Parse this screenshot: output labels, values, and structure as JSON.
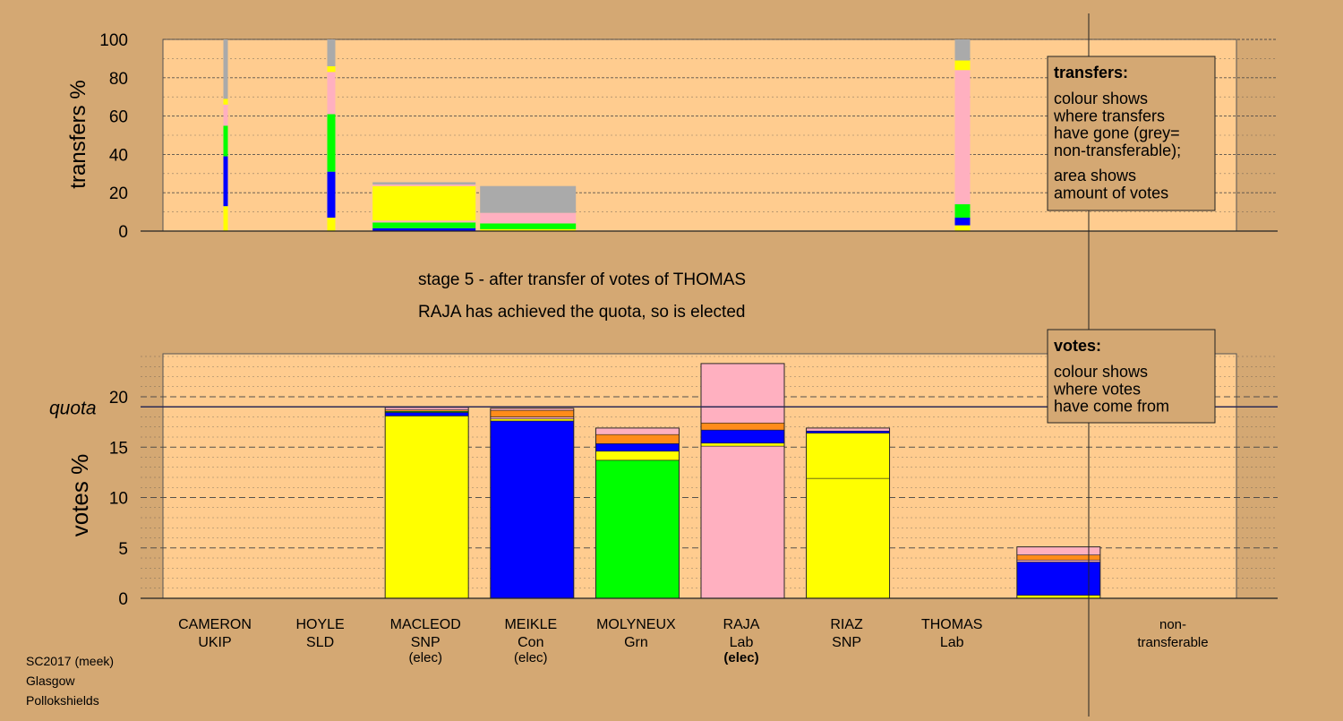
{
  "colors": {
    "background": "#d4a873",
    "panel": "#ffcc8f",
    "snp": "#ffff00",
    "con": "#0000ff",
    "grn": "#00ff00",
    "lab": "#ffb0c0",
    "orange": "#ff8c1a",
    "nontransferable": "#aaaaaa",
    "dark": "#2a2a55"
  },
  "chart_data": [
    {
      "type": "bar",
      "name": "transfers",
      "ylabel": "transfers %",
      "ylim": [
        0,
        100
      ],
      "yticks": [
        0,
        20,
        40,
        60,
        80,
        100
      ],
      "grid": true,
      "legend_placement": "right",
      "legend": {
        "title": "transfers:",
        "lines1": [
          "colour shows",
          "where transfers",
          "have gone (grey=",
          "non-transferable);"
        ],
        "lines2": [
          "area shows",
          "amount of votes"
        ]
      },
      "columns": [
        {
          "candidate": "CAMERON",
          "width": 0.05,
          "segments": [
            {
              "color": "snp",
              "from": 0,
              "to": 13
            },
            {
              "color": "con",
              "from": 13,
              "to": 39
            },
            {
              "color": "grn",
              "from": 39,
              "to": 55
            },
            {
              "color": "lab",
              "from": 55,
              "to": 66
            },
            {
              "color": "snp",
              "from": 66,
              "to": 69
            },
            {
              "color": "nontransferable",
              "from": 69,
              "to": 100
            }
          ]
        },
        {
          "candidate": "HOYLE",
          "width": 0.15,
          "segments": [
            {
              "color": "snp",
              "from": 0,
              "to": 7
            },
            {
              "color": "con",
              "from": 7,
              "to": 31
            },
            {
              "color": "grn",
              "from": 31,
              "to": 61
            },
            {
              "color": "lab",
              "from": 61,
              "to": 83
            },
            {
              "color": "snp",
              "from": 83,
              "to": 86
            },
            {
              "color": "nontransferable",
              "from": 86,
              "to": 100
            }
          ]
        },
        {
          "candidate": "MACLEOD",
          "width": 1.0,
          "segments": [
            {
              "color": "con",
              "from": 0,
              "to": 1.5
            },
            {
              "color": "grn",
              "from": 1.5,
              "to": 4.5
            },
            {
              "color": "lab",
              "from": 4.5,
              "to": 5.5
            },
            {
              "color": "snp",
              "from": 5.5,
              "to": 23.5
            },
            {
              "color": "lab",
              "from": 23.5,
              "to": 24.3
            },
            {
              "color": "nontransferable",
              "from": 24.3,
              "to": 25.5
            }
          ]
        },
        {
          "candidate": "MEIKLE",
          "width": 1.0,
          "segments": [
            {
              "color": "snp",
              "from": 0,
              "to": 1
            },
            {
              "color": "grn",
              "from": 1,
              "to": 4
            },
            {
              "color": "lab",
              "from": 4,
              "to": 9.5
            },
            {
              "color": "nontransferable",
              "from": 9.5,
              "to": 23.5
            }
          ]
        },
        {
          "candidate": "THOMAS",
          "width": 0.35,
          "segments": [
            {
              "color": "snp",
              "from": 0,
              "to": 3
            },
            {
              "color": "con",
              "from": 3,
              "to": 7
            },
            {
              "color": "grn",
              "from": 7,
              "to": 14
            },
            {
              "color": "lab",
              "from": 14,
              "to": 84
            },
            {
              "color": "snp",
              "from": 84,
              "to": 89
            },
            {
              "color": "nontransferable",
              "from": 89,
              "to": 100
            }
          ]
        }
      ]
    },
    {
      "type": "bar",
      "name": "votes",
      "ylabel": "votes %",
      "ylim": [
        0,
        24.5
      ],
      "yticks": [
        0,
        5,
        10,
        15,
        20
      ],
      "quota": 19,
      "quota_label": "quota",
      "grid": true,
      "legend_placement": "right",
      "legend": {
        "title": "votes:",
        "lines1": [
          "colour shows",
          "where votes",
          "have come from"
        ]
      },
      "categories": [
        {
          "name": "CAMERON",
          "party": "UKIP",
          "note": "",
          "bold_note": false
        },
        {
          "name": "HOYLE",
          "party": "SLD",
          "note": "",
          "bold_note": false
        },
        {
          "name": "MACLEOD",
          "party": "SNP",
          "note": "(elec)",
          "bold_note": false
        },
        {
          "name": "MEIKLE",
          "party": "Con",
          "note": "(elec)",
          "bold_note": false
        },
        {
          "name": "MOLYNEUX",
          "party": "Grn",
          "note": "",
          "bold_note": false
        },
        {
          "name": "RAJA",
          "party": "Lab",
          "note": "(elec)",
          "bold_note": true
        },
        {
          "name": "RIAZ",
          "party": "SNP",
          "note": "",
          "bold_note": false
        },
        {
          "name": "THOMAS",
          "party": "Lab",
          "note": "",
          "bold_note": false
        },
        {
          "name": "non-",
          "party": "transferable",
          "note": "",
          "bold_note": false
        }
      ],
      "stacks": [
        [],
        [],
        [
          {
            "color": "snp",
            "value": 18.1
          },
          {
            "color": "con",
            "value": 0.35
          },
          {
            "color": "grn",
            "value": 0.1
          },
          {
            "color": "orange",
            "value": 0.15
          },
          {
            "color": "lab",
            "value": 0.25
          }
        ],
        [
          {
            "color": "con",
            "value": 17.6
          },
          {
            "color": "snp",
            "value": 0.2
          },
          {
            "color": "lab",
            "value": 0.2
          },
          {
            "color": "orange",
            "value": 0.65
          },
          {
            "color": "lab",
            "value": 0.2
          }
        ],
        [
          {
            "color": "grn",
            "value": 13.7
          },
          {
            "color": "snp",
            "value": 0.9
          },
          {
            "color": "con",
            "value": 0.75
          },
          {
            "color": "orange",
            "value": 0.9
          },
          {
            "color": "lab",
            "value": 0.65
          }
        ],
        [
          {
            "color": "lab",
            "value": 15.1
          },
          {
            "color": "snp",
            "value": 0.3
          },
          {
            "color": "con",
            "value": 1.3
          },
          {
            "color": "orange",
            "value": 0.7
          },
          {
            "color": "lab",
            "value": 5.9
          }
        ],
        [
          {
            "color": "snp",
            "value": 11.9
          },
          {
            "color": "snp",
            "value": 4.5
          },
          {
            "color": "con",
            "value": 0.2
          },
          {
            "color": "lab",
            "value": 0.3
          }
        ],
        [],
        [
          {
            "color": "snp",
            "value": 0.3
          },
          {
            "color": "con",
            "value": 3.3
          },
          {
            "color": "lab",
            "value": 0.2
          },
          {
            "color": "orange",
            "value": 0.5
          },
          {
            "color": "lab",
            "value": 0.8
          }
        ]
      ]
    }
  ],
  "stage_text": {
    "line1": "stage 5 - after transfer of votes of THOMAS",
    "line2": "RAJA has achieved the quota, so is elected"
  },
  "footer": {
    "line1": "SC2017 (meek)",
    "line2": "Glasgow",
    "line3": "Pollokshields"
  }
}
